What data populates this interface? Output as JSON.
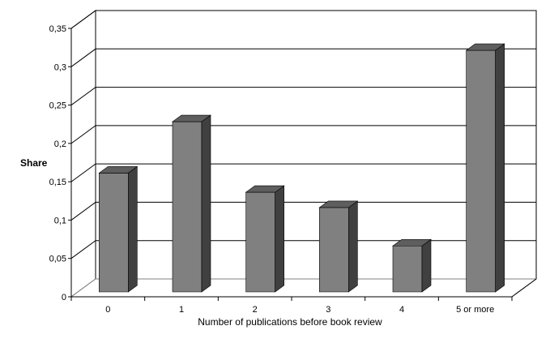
{
  "chart_data": {
    "type": "bar",
    "style": "3d",
    "title": "",
    "xlabel": "Number of publications before book review",
    "ylabel": "Share",
    "categories": [
      "0",
      "1",
      "2",
      "3",
      "4",
      "5 or more"
    ],
    "values": [
      0.155,
      0.222,
      0.13,
      0.11,
      0.06,
      0.315
    ],
    "ylim": [
      0,
      0.35
    ],
    "yticks": [
      "0",
      "0,05",
      "0,1",
      "0,15",
      "0,2",
      "0,25",
      "0,3",
      "0,35"
    ],
    "grid": true,
    "legend": "none",
    "colors": {
      "bar_front": "#808080",
      "bar_top": "#5e5e5e",
      "bar_side": "#404040",
      "grid": "#000000",
      "floor": "#ffffff"
    }
  }
}
